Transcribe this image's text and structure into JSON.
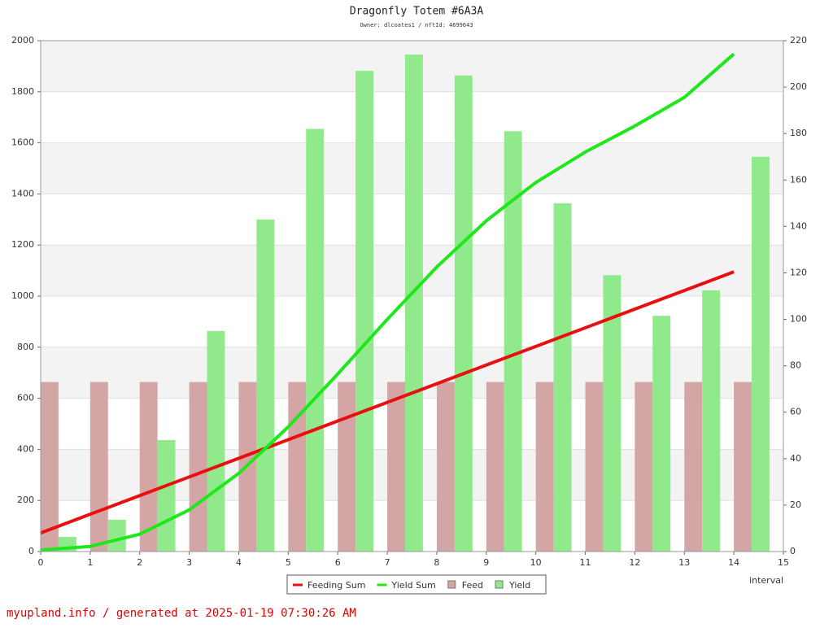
{
  "chart_data": {
    "type": "combo",
    "title": "Dragonfly Totem #6A3A",
    "subtitle": "Owner: dlcoates1 / nftId: 4699643",
    "x_label": "interval",
    "x": [
      0,
      1,
      2,
      3,
      4,
      5,
      6,
      7,
      8,
      9,
      10,
      11,
      12,
      13,
      14
    ],
    "xlim": [
      0,
      15
    ],
    "xticks": [
      0,
      1,
      2,
      3,
      4,
      5,
      6,
      7,
      8,
      9,
      10,
      11,
      12,
      13,
      14,
      15
    ],
    "ylim": [
      0,
      2000
    ],
    "yticks": [
      0,
      200,
      400,
      600,
      800,
      1000,
      1200,
      1400,
      1600,
      1800,
      2000
    ],
    "y2lim": [
      0,
      220
    ],
    "y2ticks": [
      0,
      20,
      40,
      60,
      80,
      100,
      120,
      140,
      160,
      180,
      200,
      220
    ],
    "grid": true,
    "legend": "bottom",
    "series": [
      {
        "name": "Feeding Sum",
        "type": "line",
        "color": "#e8100f",
        "values": [
          73,
          146,
          219,
          292,
          365,
          438,
          511,
          584,
          657,
          730,
          803,
          876,
          949,
          1022,
          1095
        ]
      },
      {
        "name": "Yield Sum",
        "type": "line",
        "color": "#1ee81a",
        "values": [
          6,
          20,
          68,
          163,
          306,
          488,
          695,
          909,
          1114,
          1295,
          1445,
          1564,
          1666,
          1778,
          1948
        ]
      },
      {
        "name": "Feed",
        "type": "bar",
        "axis": "y2",
        "color": "#d4a5a5",
        "values": [
          73,
          73,
          73,
          73,
          73,
          73,
          73,
          73,
          73,
          73,
          73,
          73,
          73,
          73,
          73
        ]
      },
      {
        "name": "Yield",
        "type": "bar",
        "axis": "y2",
        "color": "#90ea8c",
        "values": [
          6.3,
          13.7,
          48,
          95,
          143,
          182,
          207,
          214,
          205,
          181,
          150,
          119,
          101.5,
          112.5,
          170
        ]
      }
    ]
  },
  "footer": "myupland.info / generated at 2025-01-19 07:30:26 AM"
}
